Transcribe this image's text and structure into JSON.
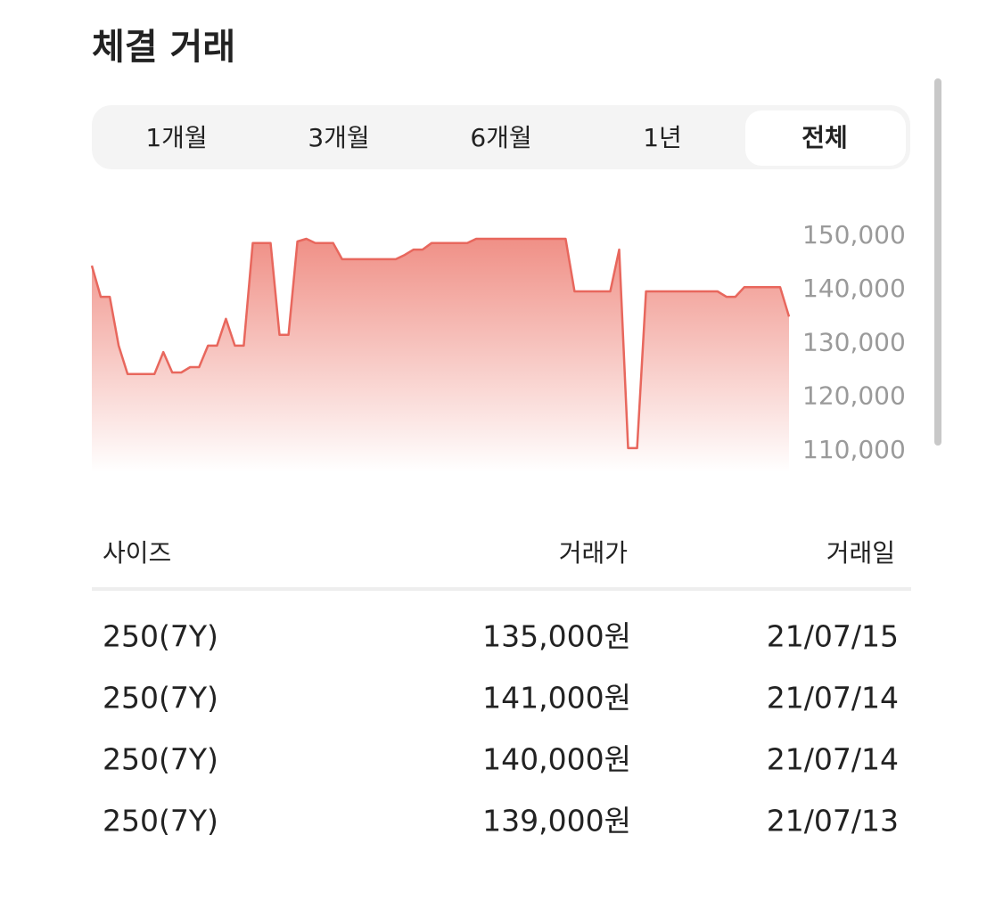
{
  "header": {
    "title": "체결 거래"
  },
  "tabs": [
    "1개월",
    "3개월",
    "6개월",
    "1년",
    "전체"
  ],
  "selected_tab": 4,
  "chart_data": {
    "type": "line",
    "color": "#e8675d",
    "values": [
      144500,
      138700,
      138700,
      129600,
      124300,
      124300,
      124300,
      124300,
      128400,
      124600,
      124600,
      125600,
      125600,
      129600,
      129600,
      134600,
      129600,
      129600,
      148700,
      148700,
      148700,
      131600,
      131600,
      149000,
      149500,
      148700,
      148700,
      148700,
      145700,
      145700,
      145700,
      145700,
      145700,
      145700,
      145700,
      146500,
      147500,
      147500,
      148700,
      148700,
      148700,
      148700,
      148700,
      149500,
      149500,
      149500,
      149500,
      149500,
      149500,
      149500,
      149500,
      149500,
      149500,
      149500,
      139700,
      139700,
      139700,
      139700,
      139700,
      147500,
      110500,
      110500,
      139700,
      139700,
      139700,
      139700,
      139700,
      139700,
      139700,
      139700,
      139700,
      138700,
      138700,
      140500,
      140500,
      140500,
      140500,
      140500,
      135000
    ],
    "ylim": [
      106000,
      150000
    ],
    "yticks": [
      {
        "value": 150000,
        "label": "150,000"
      },
      {
        "value": 140000,
        "label": "140,000"
      },
      {
        "value": 130000,
        "label": "130,000"
      },
      {
        "value": 120000,
        "label": "120,000"
      },
      {
        "value": 110000,
        "label": "110,000"
      }
    ],
    "grid": false
  },
  "table": {
    "header": [
      "사이즈",
      "거래가",
      "거래일"
    ],
    "rows": [
      [
        "250(7Y)",
        "135,000원",
        "21/07/15"
      ],
      [
        "250(7Y)",
        "141,000원",
        "21/07/14"
      ],
      [
        "250(7Y)",
        "140,000원",
        "21/07/14"
      ],
      [
        "250(7Y)",
        "139,000원",
        "21/07/13"
      ]
    ]
  }
}
